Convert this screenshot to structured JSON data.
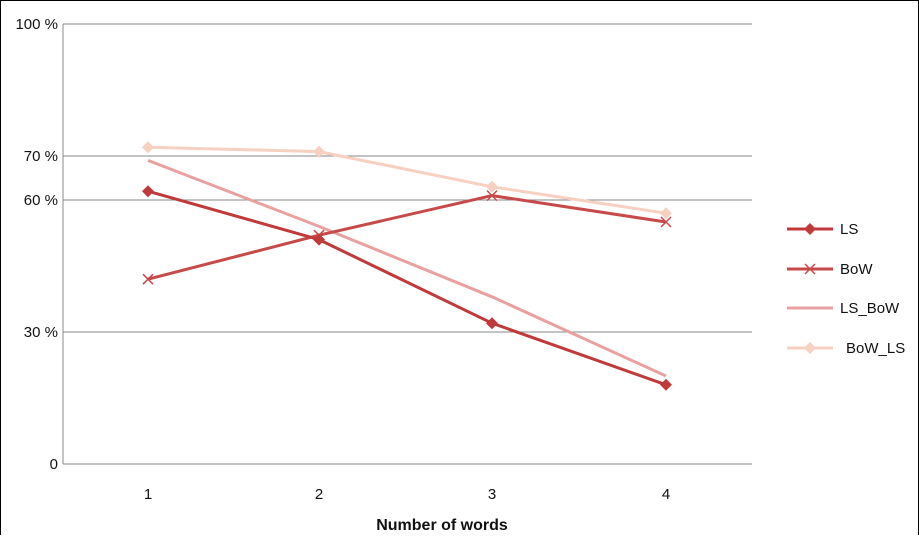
{
  "chart_data": {
    "type": "line",
    "title": "",
    "xlabel": "Number of words",
    "ylabel": "",
    "categories": [
      "1",
      "2",
      "3",
      "4"
    ],
    "ylim": [
      0,
      100
    ],
    "y_ticks": [
      {
        "value": 0,
        "label": "0"
      },
      {
        "value": 30,
        "label": "30 %"
      },
      {
        "value": 60,
        "label": "60 %"
      },
      {
        "value": 70,
        "label": "70 %"
      },
      {
        "value": 100,
        "label": "100 %"
      }
    ],
    "grid": true,
    "legend_position": "right",
    "series": [
      {
        "name": "LS",
        "values": [
          62,
          51,
          32,
          18
        ],
        "color": "#c0393b",
        "marker": "diamond"
      },
      {
        "name": "BoW",
        "values": [
          42,
          52,
          61,
          55
        ],
        "color": "#c74a4a",
        "marker": "x"
      },
      {
        "name": "LS_BoW",
        "values": [
          69,
          54,
          38,
          20
        ],
        "color": "#e8a0a0",
        "marker": "none"
      },
      {
        "name": "BoW_LS",
        "values": [
          72,
          71,
          63,
          57
        ],
        "color": "#f6d0c0",
        "marker": "diamond"
      }
    ]
  }
}
